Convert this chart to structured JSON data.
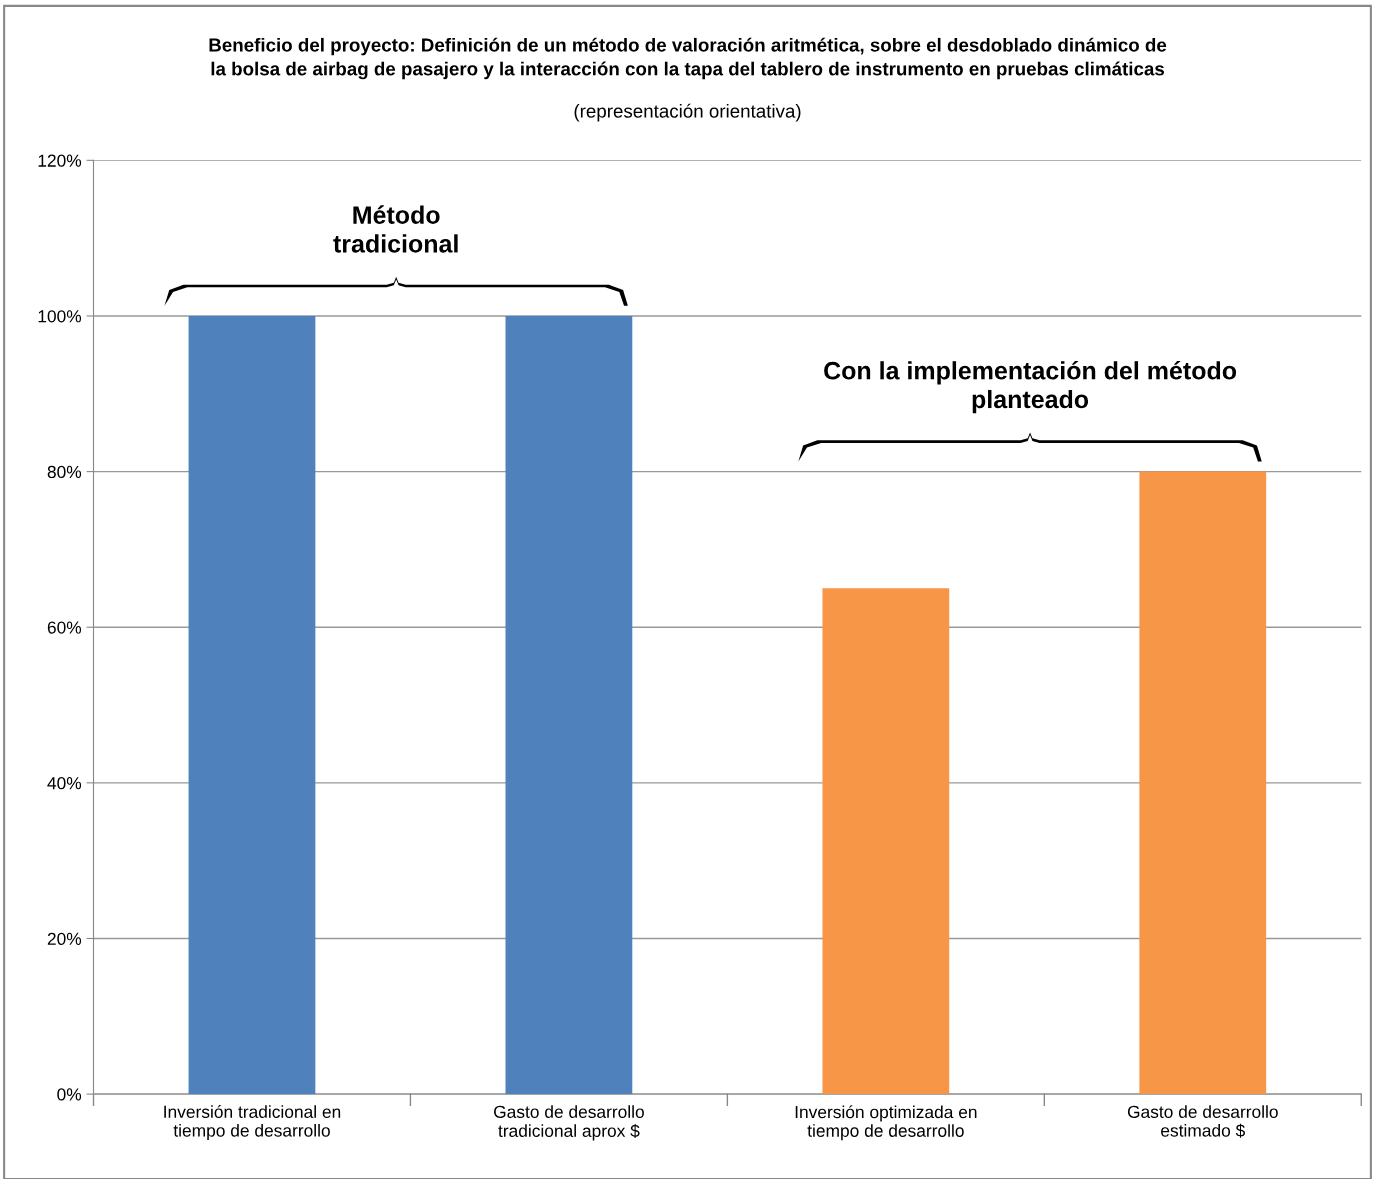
{
  "chart_data": {
    "type": "bar",
    "title": "Beneficio del proyecto: Definición de un método de valoración aritmética, sobre el desdoblado dinámico de\nla bolsa de airbag de pasajero y la interacción con la tapa del tablero de instrumento en pruebas climáticas",
    "subtitle": "(representación orientativa)",
    "categories": [
      "Inversión tradicional en\ntiempo de desarrollo",
      "Gasto de desarrollo\ntradicional aprox $",
      "Inversión optimizada en\ntiempo de desarrollo",
      "Gasto de desarrollo\nestimado $"
    ],
    "values": [
      100,
      100,
      65,
      80
    ],
    "colors": [
      "#4f81bd",
      "#4f81bd",
      "#f79646",
      "#f79646"
    ],
    "ylim": [
      0,
      120
    ],
    "yticks": [
      {
        "value": 0,
        "label": "0%"
      },
      {
        "value": 20,
        "label": "20%"
      },
      {
        "value": 40,
        "label": "40%"
      },
      {
        "value": 60,
        "label": "60%"
      },
      {
        "value": 80,
        "label": "80%"
      },
      {
        "value": 100,
        "label": "100%"
      },
      {
        "value": 120,
        "label": "120%"
      }
    ],
    "grid": "y",
    "annotations": [
      "Método\ntradicional",
      "Con la implementación del método\nplanteado"
    ]
  }
}
